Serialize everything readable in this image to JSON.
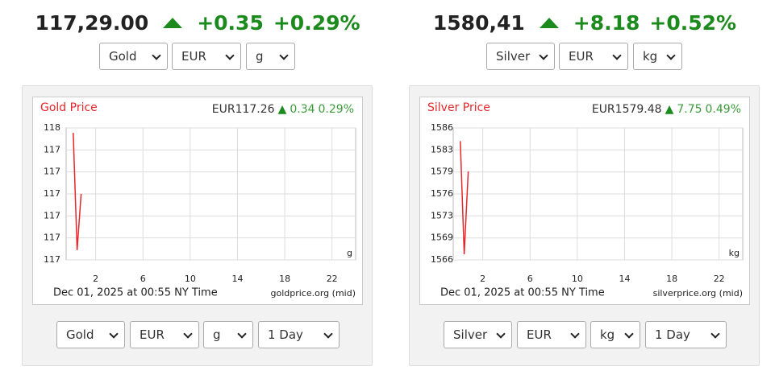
{
  "widgets": [
    {
      "header": {
        "price": "117,29.00",
        "change": "+0.35",
        "change_pct": "+0.29%"
      },
      "selects": [
        "Gold",
        "EUR",
        "g"
      ],
      "footer_selects": [
        "Gold",
        "EUR",
        "g",
        "1 Day"
      ]
    },
    {
      "header": {
        "price": "1580,41",
        "change": "+8.18",
        "change_pct": "+0.52%"
      },
      "selects": [
        "Silver",
        "EUR",
        "kg"
      ],
      "footer_selects": [
        "Silver",
        "EUR",
        "kg",
        "1 Day"
      ]
    }
  ],
  "chart_data": [
    {
      "type": "line",
      "title": "Gold Price",
      "price": "EUR117.26",
      "change": "0.34",
      "change_pct": "0.29%",
      "unit": "g",
      "timestamp": "Dec 01, 2025 at 00:55 NY Time",
      "source": "goldprice.org (mid)",
      "color": "#e8262b",
      "grid": true,
      "x": [
        0.1,
        0.43,
        0.77
      ],
      "values": [
        117.52,
        117.04,
        117.27
      ],
      "xlim": [
        -0.5,
        24
      ],
      "xticks": [
        2,
        6,
        10,
        14,
        18,
        22
      ],
      "ylim": [
        117.0,
        117.54
      ],
      "yticks": [
        {
          "value": 117.0,
          "label": "117"
        },
        {
          "value": 117.09,
          "label": "117"
        },
        {
          "value": 117.18,
          "label": "117"
        },
        {
          "value": 117.27,
          "label": "117"
        },
        {
          "value": 117.36,
          "label": "117"
        },
        {
          "value": 117.45,
          "label": "117"
        },
        {
          "value": 117.54,
          "label": "118"
        }
      ]
    },
    {
      "type": "line",
      "title": "Silver Price",
      "price": "EUR1579.48",
      "change": "7.75",
      "change_pct": "0.49%",
      "unit": "kg",
      "timestamp": "Dec 01, 2025 at 00:55 NY Time",
      "source": "silverprice.org (mid)",
      "color": "#e8262b",
      "grid": true,
      "x": [
        0.1,
        0.43,
        0.77
      ],
      "values": [
        1584.0,
        1566.85,
        1579.4
      ],
      "xlim": [
        -0.5,
        24
      ],
      "xticks": [
        2,
        6,
        10,
        14,
        18,
        22
      ],
      "ylim": [
        1566,
        1586
      ],
      "yticks": [
        1566,
        {
          "value": 1569.33,
          "label": "1569"
        },
        {
          "value": 1572.67,
          "label": "1573"
        },
        1576,
        {
          "value": 1579.33,
          "label": "1579"
        },
        {
          "value": 1582.67,
          "label": "1583"
        },
        1586
      ]
    }
  ]
}
